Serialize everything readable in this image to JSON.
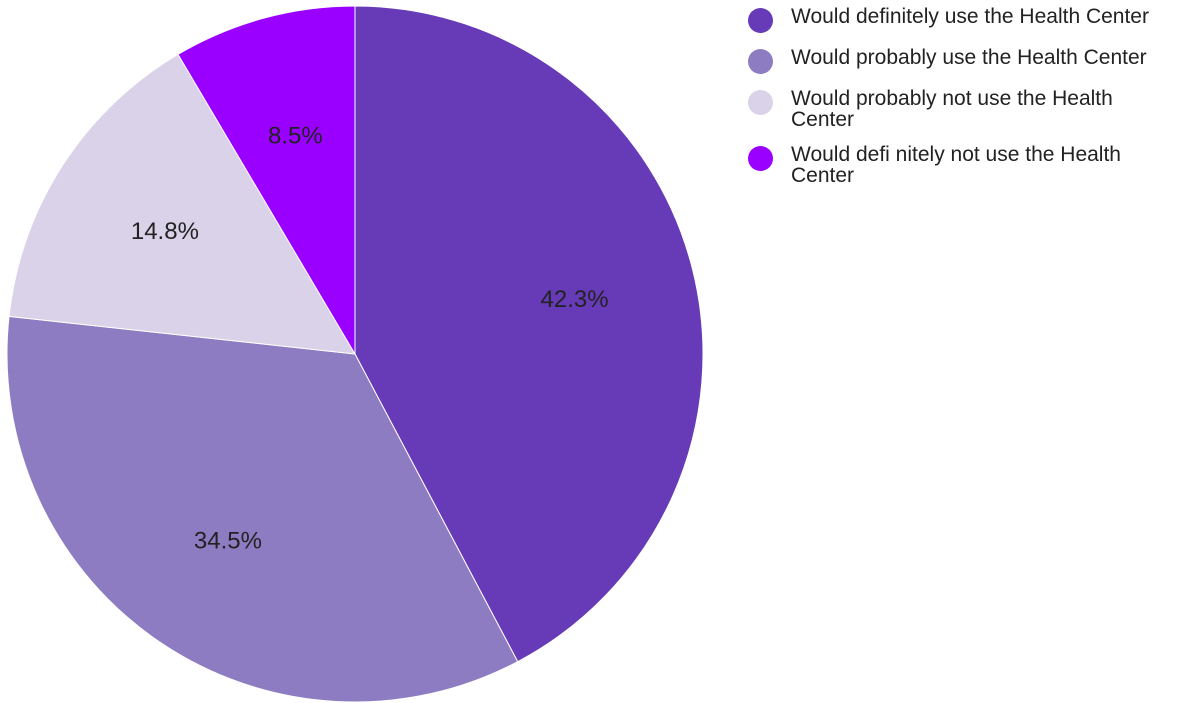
{
  "chart_data": {
    "type": "pie",
    "title": "",
    "legend_position": "right",
    "slices": [
      {
        "label": "Would definitely use the Health Center",
        "value": 42.3,
        "display": "42.3%",
        "color": "#673ab7"
      },
      {
        "label": "Would probably use the Health Center",
        "value": 34.5,
        "display": "34.5%",
        "color": "#8e7cc3"
      },
      {
        "label": "Would probably not use the Health Center",
        "value": 14.8,
        "display": "14.8%",
        "color": "#d9d2e9"
      },
      {
        "label": "Would defi nitely not use the Health Center",
        "value": 8.5,
        "display": "8.5%",
        "color": "#9900ff"
      }
    ]
  }
}
